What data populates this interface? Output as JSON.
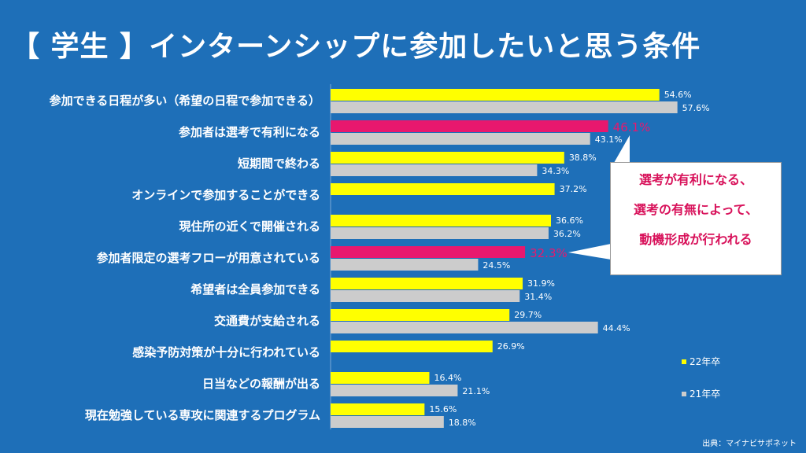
{
  "title": "【 学生 】インターンシップに参加したいと思う条件",
  "callout": {
    "line1": "選考が有利になる、",
    "line2": "選考の有無によって、",
    "line3": "動機形成が行われる"
  },
  "source": "出典：マイナビサポネット",
  "colors": {
    "background": "#1e6fb8",
    "y22": "#ffff00",
    "y21": "#cccccc",
    "highlight": "#e8186e"
  },
  "chart_data": {
    "type": "bar",
    "orientation": "horizontal",
    "categories": [
      "参加できる日程が多い（希望の日程で参加できる）",
      "参加者は選考で有利になる",
      "短期間で終わる",
      "オンラインで参加することができる",
      "現住所の近くで開催される",
      "参加者限定の選考フローが用意されている",
      "希望者は全員参加できる",
      "交通費が支給される",
      "感染予防対策が十分に行われている",
      "日当などの報酬が出る",
      "現在勉強している専攻に関連するプログラム"
    ],
    "series": [
      {
        "name": "22年卒",
        "values": [
          54.6,
          46.1,
          38.8,
          37.2,
          36.6,
          32.3,
          31.9,
          29.7,
          26.9,
          16.4,
          15.6
        ],
        "labels": [
          "54.6%",
          "46.1%",
          "38.8%",
          "37.2%",
          "36.6%",
          "32.3%",
          "31.9%",
          "29.7%",
          "26.9%",
          "16.4%",
          "15.6%"
        ]
      },
      {
        "name": "21年卒",
        "values": [
          57.6,
          43.1,
          34.3,
          null,
          36.2,
          24.5,
          31.4,
          44.4,
          null,
          21.1,
          18.8
        ],
        "labels": [
          "57.6%",
          "43.1%",
          "34.3%",
          "",
          "36.2%",
          "24.5%",
          "31.4%",
          "44.4%",
          "",
          "21.1%",
          "18.8%"
        ]
      }
    ],
    "highlighted_categories": [
      1,
      5
    ],
    "xlim": [
      0,
      70
    ],
    "legend": "right",
    "grid": false
  }
}
